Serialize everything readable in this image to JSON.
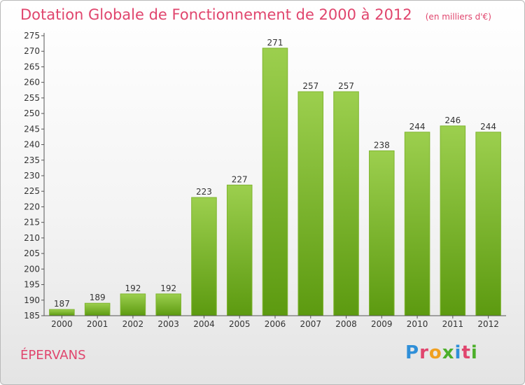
{
  "header": {
    "title": "Dotation Globale de Fonctionnement de 2000 à 2012",
    "units": "(en milliers d'€)"
  },
  "commune": "ÉPERVANS",
  "logo": {
    "letters": [
      "P",
      "r",
      "o",
      "x",
      "i",
      "t",
      "i"
    ],
    "colors": [
      "#2f8fd8",
      "#e0456d",
      "#f0a020",
      "#4caf2a",
      "#2f8fd8",
      "#e0456d",
      "#4caf2a"
    ]
  },
  "chart_data": {
    "type": "bar",
    "categories": [
      "2000",
      "2001",
      "2002",
      "2003",
      "2004",
      "2005",
      "2006",
      "2007",
      "2008",
      "2009",
      "2010",
      "2011",
      "2012"
    ],
    "values": [
      187,
      189,
      192,
      192,
      223,
      227,
      271,
      257,
      257,
      238,
      244,
      246,
      244
    ],
    "title": "Dotation Globale de Fonctionnement de 2000 à 2012",
    "xlabel": "",
    "ylabel": "",
    "ylim": [
      185,
      275
    ],
    "ytick_step": 5,
    "grid": false,
    "bar_color_top": "#9ccf4e",
    "bar_color_bottom": "#5c9a10"
  }
}
